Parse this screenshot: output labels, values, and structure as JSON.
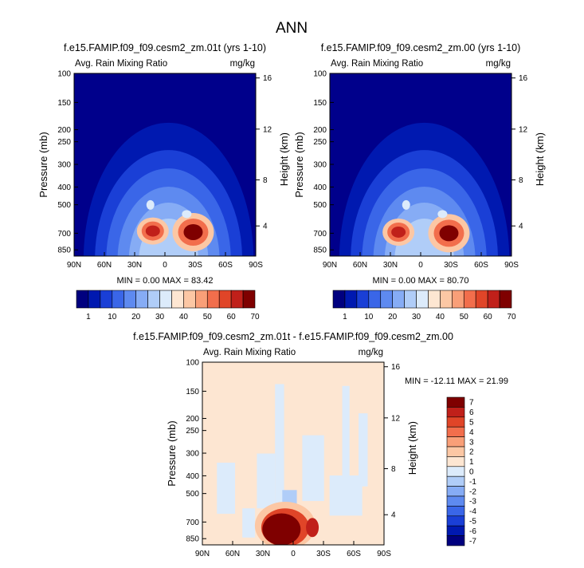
{
  "page_title": "ANN",
  "colors": {
    "background_field": "#00008b",
    "seq_scale": [
      "#00007f",
      "#0019b0",
      "#1a3fd6",
      "#3a66e8",
      "#5e8af0",
      "#86acf5",
      "#b0cdf8",
      "#dcebfb",
      "#fde6d2",
      "#fcc7a4",
      "#f99f78",
      "#f26e4c",
      "#e04528",
      "#c0201a",
      "#7f0000"
    ],
    "diff_scale": [
      "#00007f",
      "#0019b0",
      "#1a3fd6",
      "#3a66e8",
      "#5e8af0",
      "#86acf5",
      "#b0cdf8",
      "#dcebfb",
      "#fde6d2",
      "#fcc7a4",
      "#f99f78",
      "#f26e4c",
      "#e04528",
      "#c0201a",
      "#7f0000"
    ]
  },
  "chart_data": [
    {
      "type": "heatmap",
      "title": "f.e15.FAMIP.f09_f09.cesm2_zm.01t (yrs 1-10)",
      "variable": "Avg. Rain Mixing Ratio",
      "units": "mg/kg",
      "ylabel": "Pressure (mb)",
      "y2label": "Height (km)",
      "xticks": [
        "90N",
        "60N",
        "30N",
        "0",
        "30S",
        "60S",
        "90S"
      ],
      "yticks": [
        "100",
        "150",
        "200",
        "250",
        "300",
        "400",
        "500",
        "700",
        "850"
      ],
      "y2ticks": [
        "16",
        "12",
        "8",
        "4"
      ],
      "stats": "MIN =  0.00  MAX =  83.42",
      "min": 0.0,
      "max": 83.42,
      "colorbar_labels": [
        "1",
        "10",
        "20",
        "30",
        "40",
        "50",
        "60",
        "70"
      ],
      "features": [
        {
          "lat": 12,
          "p": 680,
          "value": 70
        },
        {
          "lat": -28,
          "p": 690,
          "value": 83
        }
      ]
    },
    {
      "type": "heatmap",
      "title": "f.e15.FAMIP.f09_f09.cesm2_zm.00 (yrs 1-10)",
      "variable": "Avg. Rain Mixing Ratio",
      "units": "mg/kg",
      "ylabel": "Pressure (mb)",
      "y2label": "Height (km)",
      "xticks": [
        "90N",
        "60N",
        "30N",
        "0",
        "30S",
        "60S",
        "90S"
      ],
      "yticks": [
        "100",
        "150",
        "200",
        "250",
        "300",
        "400",
        "500",
        "700",
        "850"
      ],
      "y2ticks": [
        "16",
        "12",
        "8",
        "4"
      ],
      "stats": "MIN =  0.00  MAX =  80.70",
      "min": 0.0,
      "max": 80.7,
      "colorbar_labels": [
        "1",
        "10",
        "20",
        "30",
        "40",
        "50",
        "60",
        "70"
      ],
      "features": [
        {
          "lat": 22,
          "p": 690,
          "value": 66
        },
        {
          "lat": -28,
          "p": 700,
          "value": 80
        }
      ]
    },
    {
      "type": "heatmap",
      "title": "f.e15.FAMIP.f09_f09.cesm2_zm.01t - f.e15.FAMIP.f09_f09.cesm2_zm.00",
      "variable": "Avg. Rain Mixing Ratio",
      "units": "mg/kg",
      "ylabel": "Pressure (mb)",
      "y2label": "Height (km)",
      "xticks": [
        "90N",
        "60N",
        "30N",
        "0",
        "30S",
        "60S",
        "90S"
      ],
      "yticks": [
        "100",
        "150",
        "200",
        "250",
        "300",
        "400",
        "500",
        "700",
        "850"
      ],
      "y2ticks": [
        "16",
        "12",
        "8",
        "4"
      ],
      "stats": "MIN = -12.11  MAX =  21.99",
      "min": -12.11,
      "max": 21.99,
      "colorbar_labels": [
        "7",
        "6",
        "5",
        "4",
        "3",
        "2",
        "1",
        "0",
        "-1",
        "-2",
        "-3",
        "-4",
        "-5",
        "-6",
        "-7"
      ],
      "features": [
        {
          "lat": 8,
          "p": 700,
          "value": 21.99
        }
      ]
    }
  ]
}
